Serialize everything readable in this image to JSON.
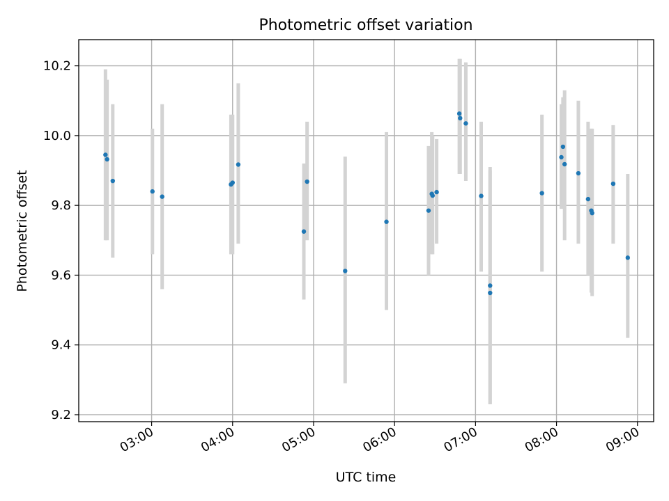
{
  "chart_data": {
    "type": "scatter",
    "title": "Photometric offset variation",
    "xlabel": "UTC time",
    "ylabel": "Photometric offset",
    "xlim": [
      2.1,
      9.2
    ],
    "ylim": [
      9.18,
      10.275
    ],
    "grid": true,
    "x_ticks": [
      3,
      4,
      5,
      6,
      7,
      8,
      9
    ],
    "x_tick_labels": [
      "03:00",
      "04:00",
      "05:00",
      "06:00",
      "07:00",
      "08:00",
      "09:00"
    ],
    "y_ticks": [
      9.2,
      9.4,
      9.6,
      9.8,
      10.0,
      10.2
    ],
    "y_tick_labels": [
      "9.2",
      "9.4",
      "9.6",
      "9.8",
      "10.0",
      "10.2"
    ],
    "colors": {
      "point": "#1f77b4",
      "errorbar": "#d3d3d3",
      "grid": "#b0b0b0"
    },
    "points": [
      {
        "x": 2.43,
        "y": 9.945,
        "lo": 9.7,
        "hi": 10.19
      },
      {
        "x": 2.45,
        "y": 9.932,
        "lo": 9.7,
        "hi": 10.16
      },
      {
        "x": 2.52,
        "y": 9.87,
        "lo": 9.65,
        "hi": 10.09
      },
      {
        "x": 3.01,
        "y": 9.84,
        "lo": 9.66,
        "hi": 10.02
      },
      {
        "x": 3.13,
        "y": 9.825,
        "lo": 9.56,
        "hi": 10.09
      },
      {
        "x": 3.98,
        "y": 9.86,
        "lo": 9.66,
        "hi": 10.06
      },
      {
        "x": 4.0,
        "y": 9.865,
        "lo": 9.66,
        "hi": 10.06
      },
      {
        "x": 4.07,
        "y": 9.917,
        "lo": 9.69,
        "hi": 10.15
      },
      {
        "x": 4.88,
        "y": 9.725,
        "lo": 9.53,
        "hi": 9.92
      },
      {
        "x": 4.92,
        "y": 9.868,
        "lo": 9.7,
        "hi": 10.04
      },
      {
        "x": 5.39,
        "y": 9.612,
        "lo": 9.29,
        "hi": 9.94
      },
      {
        "x": 5.9,
        "y": 9.753,
        "lo": 9.5,
        "hi": 10.01
      },
      {
        "x": 6.42,
        "y": 9.785,
        "lo": 9.6,
        "hi": 9.97
      },
      {
        "x": 6.46,
        "y": 9.833,
        "lo": 9.66,
        "hi": 10.01
      },
      {
        "x": 6.47,
        "y": 9.828,
        "lo": 9.66,
        "hi": 10.0
      },
      {
        "x": 6.52,
        "y": 9.838,
        "lo": 9.69,
        "hi": 9.99
      },
      {
        "x": 6.8,
        "y": 10.063,
        "lo": 9.89,
        "hi": 10.22
      },
      {
        "x": 6.81,
        "y": 10.05,
        "lo": 9.89,
        "hi": 10.22
      },
      {
        "x": 6.88,
        "y": 10.035,
        "lo": 9.87,
        "hi": 10.21
      },
      {
        "x": 7.07,
        "y": 9.827,
        "lo": 9.61,
        "hi": 10.04
      },
      {
        "x": 7.18,
        "y": 9.57,
        "lo": 9.23,
        "hi": 9.91
      },
      {
        "x": 7.18,
        "y": 9.549,
        "lo": 9.23,
        "hi": 9.9
      },
      {
        "x": 7.82,
        "y": 9.835,
        "lo": 9.61,
        "hi": 10.06
      },
      {
        "x": 8.06,
        "y": 9.938,
        "lo": 9.79,
        "hi": 10.09
      },
      {
        "x": 8.08,
        "y": 9.968,
        "lo": 9.81,
        "hi": 10.11
      },
      {
        "x": 8.1,
        "y": 9.918,
        "lo": 9.7,
        "hi": 10.13
      },
      {
        "x": 8.27,
        "y": 9.892,
        "lo": 9.69,
        "hi": 10.1
      },
      {
        "x": 8.39,
        "y": 9.818,
        "lo": 9.6,
        "hi": 10.04
      },
      {
        "x": 8.43,
        "y": 9.785,
        "lo": 9.55,
        "hi": 10.02
      },
      {
        "x": 8.44,
        "y": 9.778,
        "lo": 9.54,
        "hi": 10.02
      },
      {
        "x": 8.7,
        "y": 9.862,
        "lo": 9.69,
        "hi": 10.03
      },
      {
        "x": 8.88,
        "y": 9.65,
        "lo": 9.42,
        "hi": 9.89
      }
    ]
  }
}
